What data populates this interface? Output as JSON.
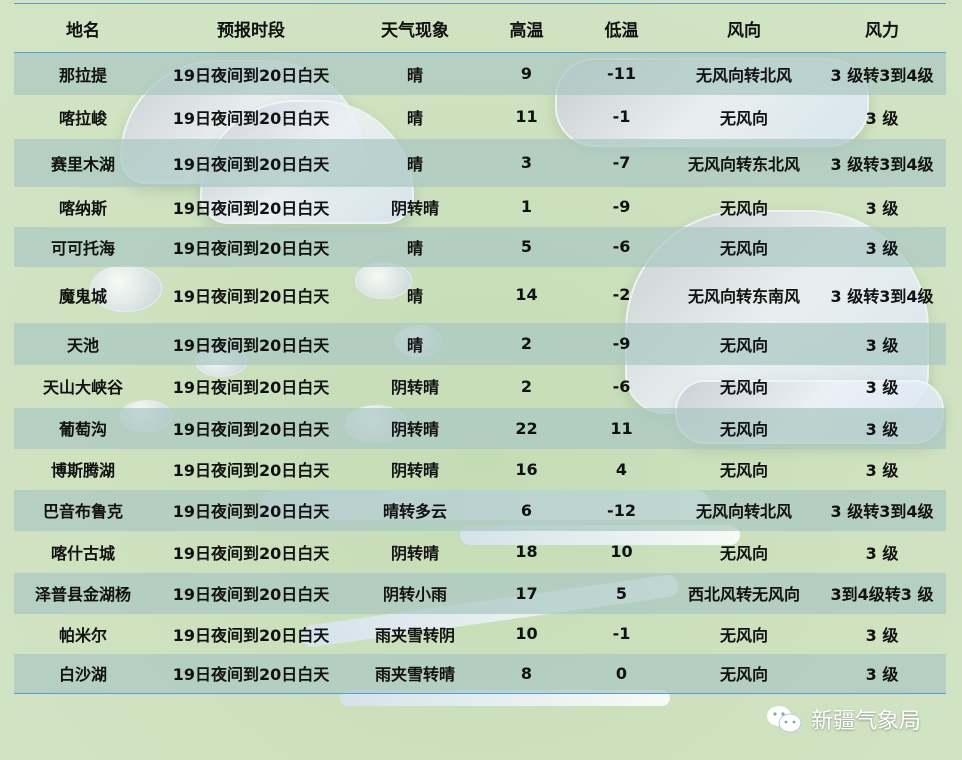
{
  "columns": [
    "地名",
    "预报时段",
    "天气现象",
    "高温",
    "低温",
    "风向",
    "风力"
  ],
  "rows": [
    [
      "那拉提",
      "19日夜间到20日白天",
      "晴",
      "9",
      "-11",
      "无风向转北风",
      "3 级转3到4级"
    ],
    [
      "喀拉峻",
      "19日夜间到20日白天",
      "晴",
      "11",
      "-1",
      "无风向",
      "3 级"
    ],
    [
      "赛里木湖",
      "19日夜间到20日白天",
      "晴",
      "3",
      "-7",
      "无风向转东北风",
      "3 级转3到4级"
    ],
    [
      "喀纳斯",
      "19日夜间到20日白天",
      "阴转晴",
      "1",
      "-9",
      "无风向",
      "3 级"
    ],
    [
      "可可托海",
      "19日夜间到20日白天",
      "晴",
      "5",
      "-6",
      "无风向",
      "3 级"
    ],
    [
      "魔鬼城",
      "19日夜间到20日白天",
      "晴",
      "14",
      "-2",
      "无风向转东南风",
      "3 级转3到4级"
    ],
    [
      "天池",
      "19日夜间到20日白天",
      "晴",
      "2",
      "-9",
      "无风向",
      "3 级"
    ],
    [
      "天山大峡谷",
      "19日夜间到20日白天",
      "阴转晴",
      "2",
      "-6",
      "无风向",
      "3 级"
    ],
    [
      "葡萄沟",
      "19日夜间到20日白天",
      "阴转晴",
      "22",
      "11",
      "无风向",
      "3 级"
    ],
    [
      "博斯腾湖",
      "19日夜间到20日白天",
      "阴转晴",
      "16",
      "4",
      "无风向",
      "3 级"
    ],
    [
      "巴音布鲁克",
      "19日夜间到20日白天",
      "晴转多云",
      "6",
      "-12",
      "无风向转北风",
      "3 级转3到4级"
    ],
    [
      "喀什古城",
      "19日夜间到20日白天",
      "阴转晴",
      "18",
      "10",
      "无风向",
      "3 级"
    ],
    [
      "泽普县金湖杨",
      "19日夜间到20日白天",
      "阴转小雨",
      "17",
      "5",
      "西北风转无风向",
      "3到4级转3 级"
    ],
    [
      "帕米尔",
      "19日夜间到20日白天",
      "雨夹雪转阴",
      "10",
      "-1",
      "无风向",
      "3 级"
    ],
    [
      "白沙湖",
      "19日夜间到20日白天",
      "雨夹雪转晴",
      "8",
      "0",
      "无风向",
      "3 级"
    ]
  ],
  "footer": {
    "brand": "新疆气象局",
    "icon": "wechat-icon"
  },
  "colors": {
    "rule": "#5b9bd5",
    "stripe": "#b5d3c6",
    "background": "#cfe2c0"
  }
}
